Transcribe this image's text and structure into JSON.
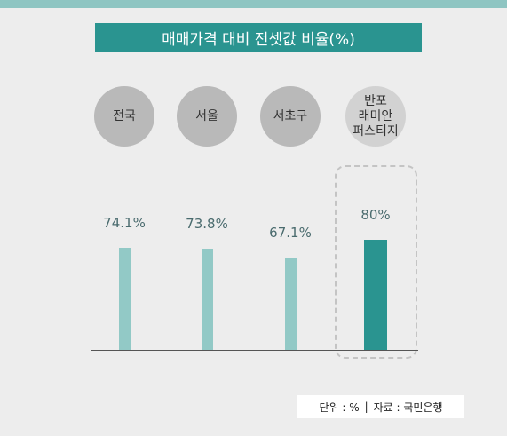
{
  "colors": {
    "accent": "#2a9490",
    "bar": "#92c9c6",
    "circle": "#b9b9b9",
    "circle_highlight": "#d2d2d2",
    "background": "#ededed"
  },
  "chart_data": {
    "type": "bar",
    "title": "매매가격 대비 전셋값 비율(%)",
    "categories": [
      "전국",
      "서울",
      "서초구",
      "반포\n래미안\n퍼스티지"
    ],
    "values": [
      74.1,
      73.8,
      67.1,
      80
    ],
    "value_labels": [
      "74.1%",
      "73.8%",
      "67.1%",
      "80%"
    ],
    "highlight_index": 3,
    "grid": false
  },
  "footnote": {
    "unit": "단위 : %",
    "separator": "|",
    "source": "자료 : 국민은행"
  }
}
